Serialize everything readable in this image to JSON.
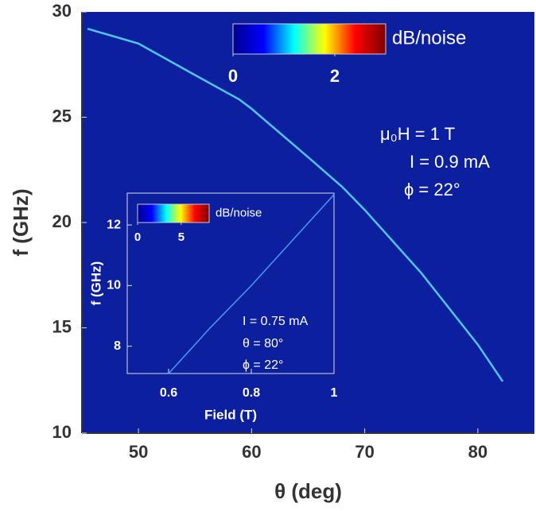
{
  "chart_data": [
    {
      "type": "line",
      "xlabel": "θ (deg)",
      "ylabel": "f (GHz)",
      "x": [
        45.5,
        50,
        55,
        58.9,
        60,
        65,
        68,
        70,
        75,
        80,
        82.2
      ],
      "values": [
        29.2,
        28.5,
        27.0,
        25.85,
        25.4,
        23.1,
        21.7,
        20.6,
        17.6,
        14.2,
        12.45
      ],
      "color": "#55d8ff",
      "background": "#0c1f9e",
      "xlim": [
        45,
        85
      ],
      "xticks": [
        50,
        60,
        70,
        80
      ],
      "ylim": [
        10,
        30
      ],
      "yticks": [
        10,
        15,
        20,
        25,
        30
      ],
      "colorbar": {
        "label": "dB/noise",
        "range": [
          0,
          3
        ],
        "ticks": [
          0,
          2
        ],
        "colors": [
          "#00008f",
          "#0000ff",
          "#00ffff",
          "#ffff00",
          "#ff0000",
          "#800000"
        ]
      },
      "annotations": [
        "μ₀H = 1 T",
        "I = 0.9 mA",
        "ϕ = 22°"
      ]
    },
    {
      "type": "line",
      "xlabel": "Field (T)",
      "ylabel": "f (GHz)",
      "x": [
        0.6,
        0.7,
        0.8,
        0.9,
        1.0
      ],
      "values": [
        7.1,
        8.6,
        10.0,
        11.5,
        13.0
      ],
      "color": "#4aa8ff",
      "background": "#0c1f9e",
      "xlim": [
        0.5,
        1
      ],
      "xticks": [
        0.6,
        0.8,
        {
          "value": 1,
          "label": "1"
        }
      ],
      "ylim": [
        7.1,
        13.05
      ],
      "yticks": [
        8,
        10,
        12
      ],
      "colorbar": {
        "label": "dB/noise",
        "range": [
          0,
          8.2
        ],
        "ticks": [
          0,
          5
        ],
        "colors": [
          "#00008f",
          "#0000ff",
          "#00ffff",
          "#ffff00",
          "#ff0000",
          "#800000"
        ]
      },
      "annotations": [
        "I = 0.75 mA",
        "θ = 80°",
        "ϕ = 22°"
      ]
    }
  ]
}
